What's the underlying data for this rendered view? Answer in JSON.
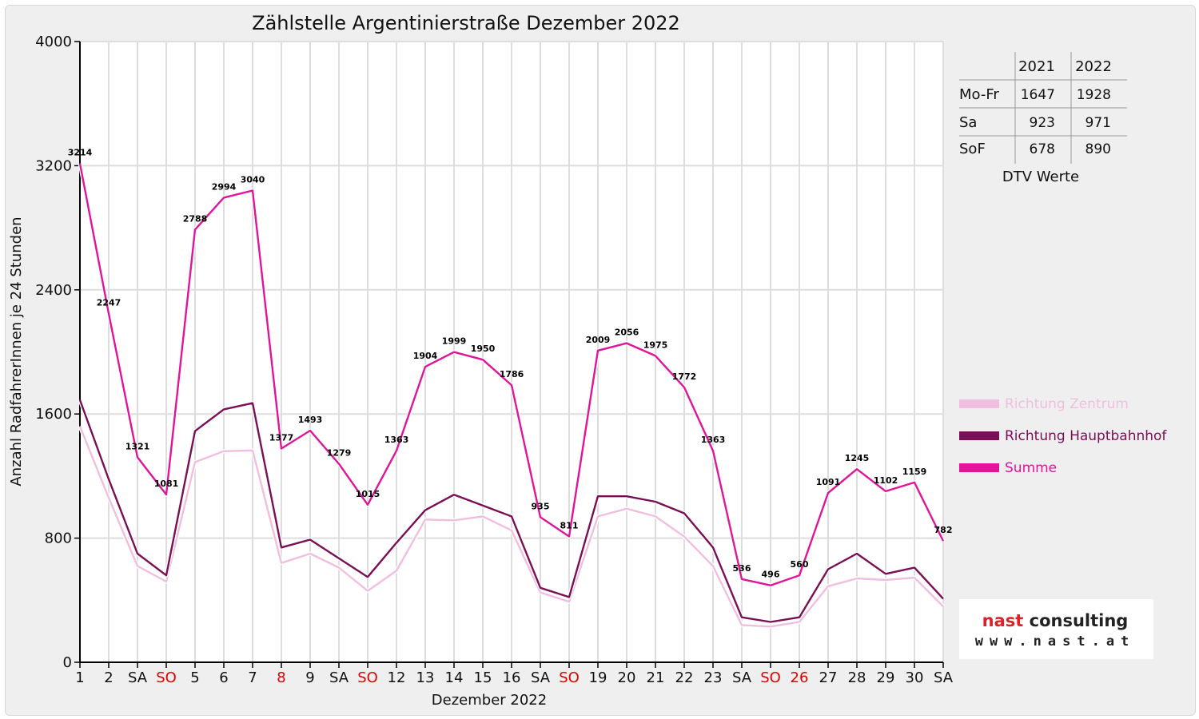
{
  "chart_data": {
    "type": "line",
    "title": "Zählstelle Argentinierstraße Dezember 2022",
    "xlabel": "Dezember 2022",
    "ylabel": "Anzahl RadfahrerInnen je 24 Stunden",
    "ylim": [
      0,
      4000
    ],
    "yticks": [
      "0",
      "800",
      "1600",
      "2400",
      "3200",
      "4000"
    ],
    "grid": true,
    "legend_position": "right",
    "categories": [
      "1",
      "2",
      "SA",
      "SO",
      "5",
      "6",
      "7",
      "8",
      "9",
      "SA",
      "SO",
      "12",
      "13",
      "14",
      "15",
      "16",
      "SA",
      "SO",
      "19",
      "20",
      "21",
      "22",
      "23",
      "SA",
      "SO",
      "26",
      "27",
      "28",
      "29",
      "30",
      "SA"
    ],
    "red_categories": [
      3,
      7,
      10,
      17,
      24,
      25
    ],
    "series": [
      {
        "name": "Richtung Zentrum",
        "color": "#f0bfdf",
        "values": [
          1520,
          1060,
          620,
          520,
          1290,
          1360,
          1365,
          640,
          700,
          610,
          460,
          590,
          920,
          915,
          940,
          850,
          450,
          390,
          940,
          990,
          940,
          810,
          620,
          240,
          230,
          260,
          490,
          540,
          530,
          545,
          360
        ]
      },
      {
        "name": "Richtung Hauptbahnhof",
        "color": "#7a0f56",
        "values": [
          1690,
          1180,
          700,
          560,
          1490,
          1630,
          1670,
          740,
          790,
          670,
          550,
          770,
          980,
          1080,
          1010,
          940,
          480,
          420,
          1070,
          1070,
          1035,
          960,
          740,
          290,
          260,
          290,
          600,
          700,
          570,
          610,
          410
        ]
      },
      {
        "name": "Summe",
        "color": "#e0159a",
        "values": [
          3214,
          2247,
          1321,
          1081,
          2788,
          2994,
          3040,
          1377,
          1493,
          1279,
          1015,
          1363,
          1904,
          1999,
          1950,
          1786,
          935,
          811,
          2009,
          2056,
          1975,
          1772,
          1363,
          536,
          496,
          560,
          1091,
          1245,
          1102,
          1159,
          782
        ],
        "data_labels": [
          "3214",
          "2247",
          "1321",
          "1081",
          "2788",
          "2994",
          "3040",
          "1377",
          "1493",
          "1279",
          "1015",
          "1363",
          "1904",
          "1999",
          "1950",
          "1786",
          "935",
          "811",
          "2009",
          "2056",
          "1975",
          "1772",
          "1363",
          "536",
          "496",
          "560",
          "1091",
          "1245",
          "1102",
          "1159",
          "782"
        ]
      }
    ]
  },
  "dtv_table": {
    "headers": [
      "2021",
      "2022"
    ],
    "rows": [
      {
        "label": "Mo-Fr",
        "v2021": "1647",
        "v2022": "1928"
      },
      {
        "label": "Sa",
        "v2021": "923",
        "v2022": "971"
      },
      {
        "label": "SoF",
        "v2021": "678",
        "v2022": "890"
      }
    ],
    "caption": "DTV Werte"
  },
  "logo": {
    "line1": "nast consulting",
    "line2": "www.nast.at"
  }
}
